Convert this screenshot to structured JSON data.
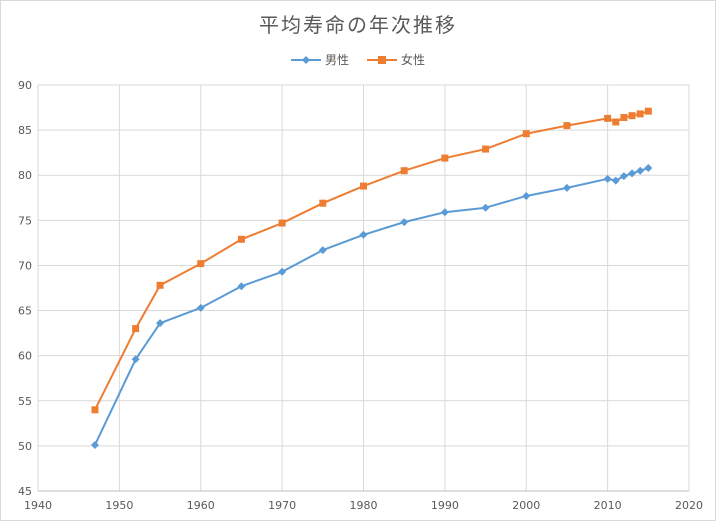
{
  "chart_data": {
    "type": "line",
    "title": "平均寿命の年次推移",
    "xlim": [
      1940,
      2020
    ],
    "ylim": [
      45,
      90
    ],
    "xticks": [
      "1940",
      "1950",
      "1960",
      "1970",
      "1980",
      "1990",
      "2000",
      "2010",
      "2020"
    ],
    "yticks": [
      "45",
      "50",
      "55",
      "60",
      "65",
      "70",
      "75",
      "80",
      "85",
      "90"
    ],
    "grid": true,
    "legend_position": "top",
    "series": [
      {
        "name": "男性",
        "color": "#5b9bd5",
        "marker": "diamond",
        "x": [
          1947,
          1952,
          1955,
          1960,
          1965,
          1970,
          1975,
          1980,
          1985,
          1990,
          1995,
          2000,
          2005,
          2010,
          2011,
          2012,
          2013,
          2014,
          2015
        ],
        "y": [
          50.1,
          59.6,
          63.6,
          65.3,
          67.7,
          69.3,
          71.7,
          73.4,
          74.8,
          75.9,
          76.4,
          77.7,
          78.6,
          79.6,
          79.4,
          79.9,
          80.2,
          80.5,
          80.8
        ]
      },
      {
        "name": "女性",
        "color": "#ed7d31",
        "marker": "square",
        "x": [
          1947,
          1952,
          1955,
          1960,
          1965,
          1970,
          1975,
          1980,
          1985,
          1990,
          1995,
          2000,
          2005,
          2010,
          2011,
          2012,
          2013,
          2014,
          2015
        ],
        "y": [
          54.0,
          63.0,
          67.8,
          70.2,
          72.9,
          74.7,
          76.9,
          78.8,
          80.5,
          81.9,
          82.9,
          84.6,
          85.5,
          86.3,
          85.9,
          86.4,
          86.6,
          86.8,
          87.1
        ]
      }
    ]
  }
}
